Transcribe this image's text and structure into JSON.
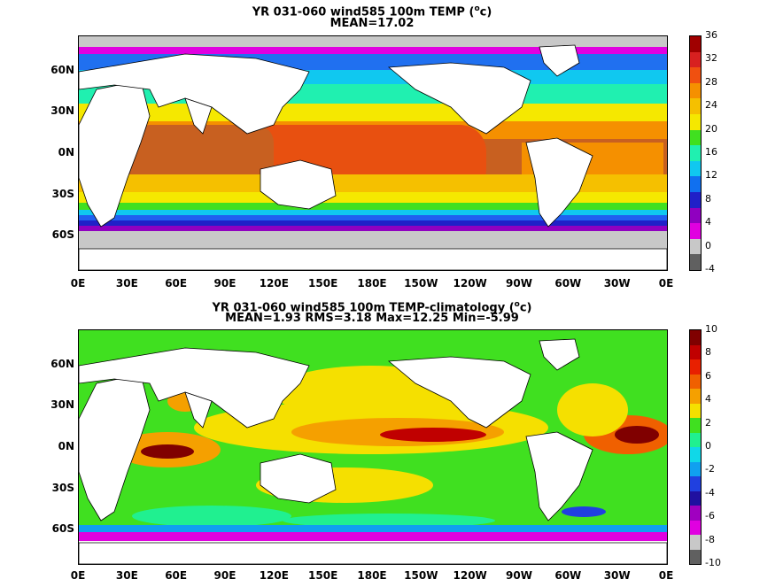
{
  "panel_top": {
    "title_line1": "YR 031-060 wind585 100m TEMP (",
    "title_unit_sup": "o",
    "title_unit_tail": "c)",
    "title_line2": "MEAN=17.02",
    "colorbar_labels": [
      "36",
      "32",
      "28",
      "24",
      "20",
      "16",
      "12",
      "8",
      "4",
      "0",
      "-4"
    ],
    "colorbar_colors": [
      "#a00000",
      "#d82020",
      "#f05010",
      "#f59000",
      "#f5c000",
      "#f5e800",
      "#40e020",
      "#20f0b0",
      "#10c8f0",
      "#1070f0",
      "#2020c8",
      "#9000c0",
      "#e000e0",
      "#c8c8c8",
      "#606060"
    ]
  },
  "panel_bottom": {
    "title_line1": "YR 031-060 wind585 100m TEMP-climatology (",
    "title_unit_sup": "o",
    "title_unit_tail": "c)",
    "title_line2": "MEAN=1.93   RMS=3.18   Max=12.25   Min=-5.99",
    "colorbar_labels": [
      "10",
      "8",
      "6",
      "4",
      "2",
      "0",
      "-2",
      "-4",
      "-6",
      "-8",
      "-10"
    ],
    "colorbar_colors": [
      "#800000",
      "#c00000",
      "#e82000",
      "#f06000",
      "#f5a000",
      "#f5e000",
      "#40e020",
      "#20f090",
      "#10d8e8",
      "#10a0f0",
      "#2040e0",
      "#2010a0",
      "#a000c0",
      "#e000e0",
      "#c8c8c8",
      "#606060"
    ]
  },
  "lat_labels": [
    "60N",
    "30N",
    "0N",
    "30S",
    "60S"
  ],
  "lon_labels": [
    "0E",
    "30E",
    "60E",
    "90E",
    "120E",
    "150E",
    "180E",
    "150W",
    "120W",
    "90W",
    "60W",
    "30W",
    "0E"
  ]
}
